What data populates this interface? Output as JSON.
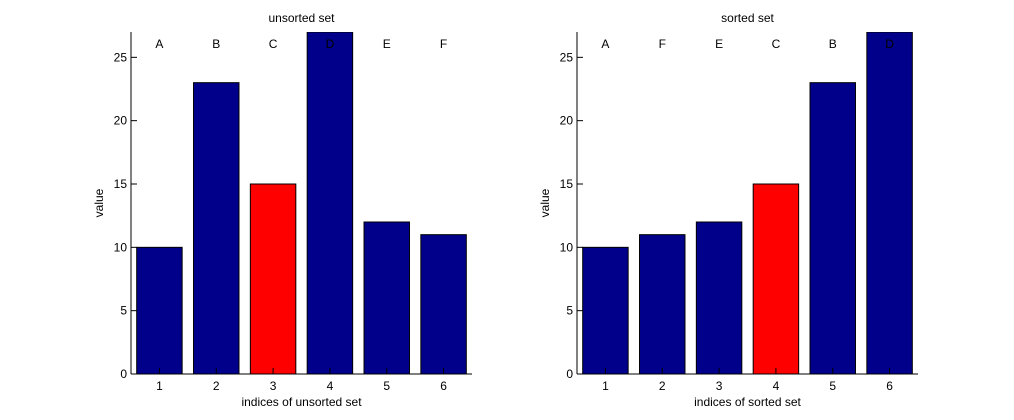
{
  "chart_data": [
    {
      "type": "bar",
      "title": "unsorted set",
      "xlabel": "indices of unsorted set",
      "ylabel": "value",
      "categories": [
        "1",
        "2",
        "3",
        "4",
        "5",
        "6"
      ],
      "bar_labels": [
        "A",
        "B",
        "C",
        "D",
        "E",
        "F"
      ],
      "values": [
        10,
        23,
        15,
        27,
        12,
        11
      ],
      "highlight_index": 2,
      "ylim": [
        0,
        27
      ],
      "xlim": [
        0.5,
        6.5
      ],
      "yticks": [
        0,
        5,
        10,
        15,
        20,
        25
      ],
      "grid": false,
      "colors": {
        "bar": "#00008b",
        "highlight": "#ff0000",
        "edge": "#000000"
      }
    },
    {
      "type": "bar",
      "title": "sorted set",
      "xlabel": "indices of sorted set",
      "ylabel": "value",
      "categories": [
        "1",
        "2",
        "3",
        "4",
        "5",
        "6"
      ],
      "bar_labels": [
        "A",
        "F",
        "E",
        "C",
        "B",
        "D"
      ],
      "values": [
        10,
        11,
        12,
        15,
        23,
        27
      ],
      "highlight_index": 3,
      "ylim": [
        0,
        27
      ],
      "xlim": [
        0.5,
        6.5
      ],
      "yticks": [
        0,
        5,
        10,
        15,
        20,
        25
      ],
      "grid": false,
      "colors": {
        "bar": "#00008b",
        "highlight": "#ff0000",
        "edge": "#000000"
      }
    }
  ]
}
